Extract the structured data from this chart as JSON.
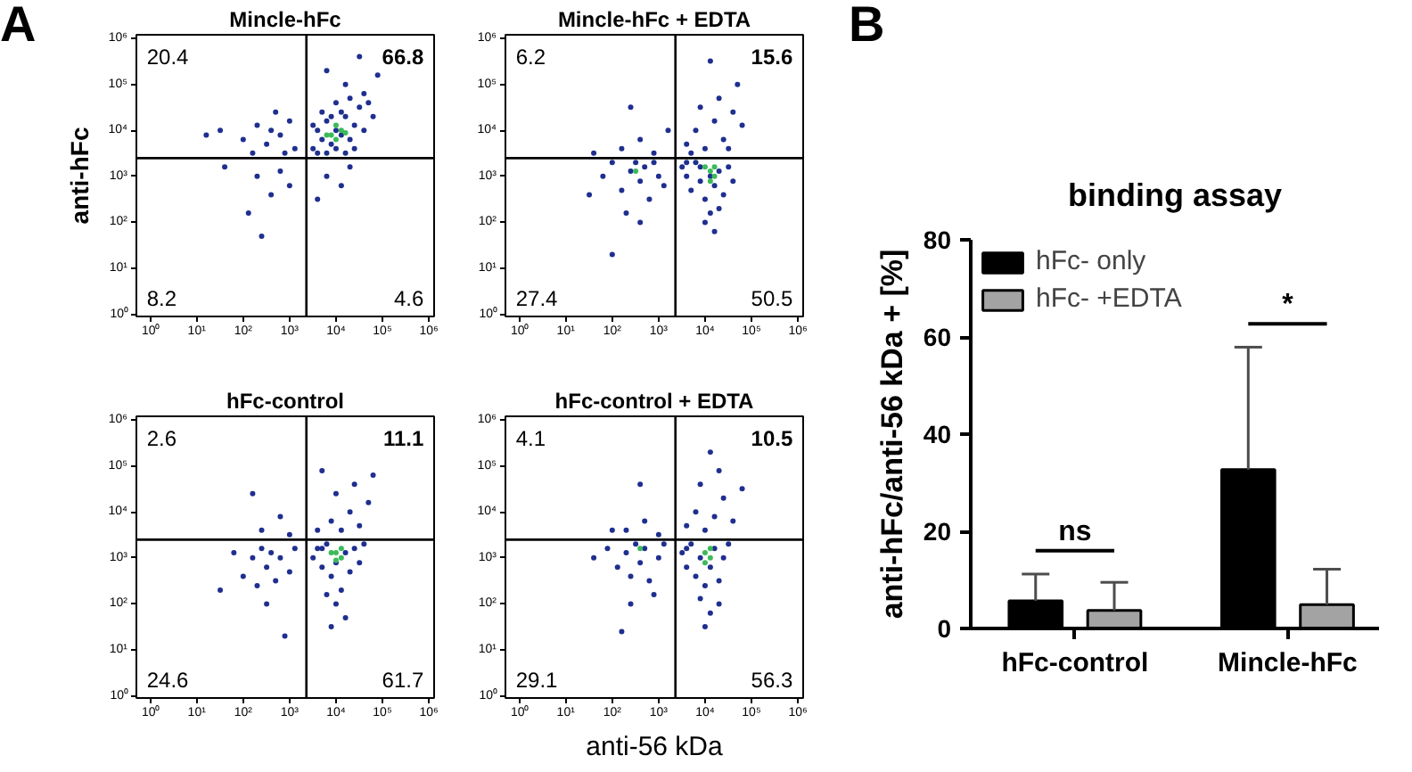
{
  "chart_data": [
    {
      "type": "scatter",
      "title": "Mincle-hFc",
      "ylabel": "anti-hFc",
      "log": "xy",
      "marker": "circle",
      "xlim": [
        0.5,
        1300000
      ],
      "ylim": [
        0.9,
        1200000
      ],
      "xticks": [
        {
          "value": 1,
          "label": "10⁰"
        },
        {
          "value": 10,
          "label": "10¹"
        },
        {
          "value": 100,
          "label": "10²"
        },
        {
          "value": 1000,
          "label": "10³"
        },
        {
          "value": 10000,
          "label": "10⁴"
        },
        {
          "value": 100000,
          "label": "10⁵"
        },
        {
          "value": 1000000,
          "label": "10⁶"
        }
      ],
      "yticks": [
        {
          "value": 1,
          "label": "10⁰"
        },
        {
          "value": 10,
          "label": "10¹"
        },
        {
          "value": 100,
          "label": "10²"
        },
        {
          "value": 1000,
          "label": "10³"
        },
        {
          "value": 10000,
          "label": "10⁴"
        },
        {
          "value": 100000,
          "label": "10⁵"
        },
        {
          "value": 1000000,
          "label": "10⁶"
        }
      ],
      "ref_lines": [
        {
          "axis": "x",
          "value": 2300,
          "color": "#000000"
        },
        {
          "axis": "y",
          "value": 2500,
          "color": "#000000"
        }
      ],
      "annotations": [
        "A",
        "20.4",
        "66.8",
        "8.2",
        "4.6"
      ],
      "series": [
        {
          "color": "#1f2f8f",
          "x": [
            3200,
            4000,
            5000,
            6300,
            7900,
            10000,
            13000,
            16000,
            20000,
            25000,
            32000,
            40000,
            4000,
            6300,
            10000,
            16000,
            5000,
            10000,
            20000,
            50000,
            63000,
            7900,
            13000,
            3200,
            25000,
            40000,
            79000,
            16000,
            6300,
            32000,
            32,
            100,
            200,
            320,
            400,
            630,
            1000,
            1300,
            500,
            16,
            160,
            790,
            200,
            400,
            630,
            130,
            1000,
            40,
            250,
            6300,
            13000,
            4000,
            20000
          ],
          "values": [
            4000,
            10000,
            6300,
            16000,
            5000,
            10000,
            7900,
            20000,
            6300,
            13000,
            32000,
            10000,
            3200,
            3200,
            4000,
            3200,
            25000,
            40000,
            50000,
            40000,
            20000,
            20000,
            25000,
            13000,
            4000,
            63000,
            160000,
            100000,
            200000,
            400000,
            10000,
            6300,
            13000,
            5000,
            10000,
            7900,
            16000,
            4000,
            25000,
            7900,
            3200,
            3200,
            1000,
            400,
            1300,
            160,
            630,
            1600,
            50,
            1000,
            630,
            320,
            1600
          ]
        },
        {
          "color": "#3cba5a",
          "x": [
            7900,
            10000,
            13000,
            10000,
            6300,
            16000
          ],
          "values": [
            7900,
            6300,
            10000,
            13000,
            7900,
            8900
          ]
        }
      ]
    },
    {
      "type": "scatter",
      "title": "Mincle-hFc + EDTA",
      "log": "xy",
      "marker": "circle",
      "xlim": [
        0.5,
        1300000
      ],
      "ylim": [
        0.9,
        1200000
      ],
      "xticks": [
        {
          "value": 1,
          "label": "10⁰"
        },
        {
          "value": 10,
          "label": "10¹"
        },
        {
          "value": 100,
          "label": "10²"
        },
        {
          "value": 1000,
          "label": "10³"
        },
        {
          "value": 10000,
          "label": "10⁴"
        },
        {
          "value": 100000,
          "label": "10⁵"
        },
        {
          "value": 1000000,
          "label": "10⁶"
        }
      ],
      "yticks": [
        {
          "value": 1,
          "label": "10⁰"
        },
        {
          "value": 10,
          "label": "10¹"
        },
        {
          "value": 100,
          "label": "10²"
        },
        {
          "value": 1000,
          "label": "10³"
        },
        {
          "value": 10000,
          "label": "10⁴"
        },
        {
          "value": 100000,
          "label": "10⁵"
        },
        {
          "value": 1000000,
          "label": "10⁶"
        }
      ],
      "ref_lines": [
        {
          "axis": "x",
          "value": 2300,
          "color": "#000000"
        },
        {
          "axis": "y",
          "value": 2500,
          "color": "#000000"
        }
      ],
      "annotations": [
        "6.2",
        "15.6",
        "27.4",
        "50.5"
      ],
      "series": [
        {
          "color": "#1f2f8f",
          "x": [
            3200,
            4000,
            5000,
            6300,
            7900,
            10000,
            13000,
            16000,
            20000,
            25000,
            32000,
            10000,
            16000,
            7900,
            13000,
            4000,
            40000,
            20000,
            4000,
            6300,
            10000,
            16000,
            25000,
            40000,
            63000,
            7900,
            20000,
            50000,
            13000,
            5000,
            32000,
            63,
            100,
            160,
            250,
            320,
            400,
            500,
            630,
            1000,
            1300,
            200,
            790,
            32,
            400,
            100,
            160,
            400,
            790,
            1600,
            40,
            250
          ],
          "values": [
            1600,
            1000,
            500,
            2000,
            790,
            320,
            160,
            630,
            1300,
            400,
            1600,
            100,
            63,
            1600,
            1000,
            2000,
            790,
            200,
            5000,
            10000,
            4000,
            16000,
            6300,
            25000,
            13000,
            32000,
            50000,
            100000,
            320000,
            3200,
            4000,
            1000,
            2000,
            500,
            1300,
            2000,
            790,
            1600,
            320,
            1000,
            630,
            160,
            2000,
            400,
            100,
            20,
            4000,
            6300,
            3200,
            10000,
            3200,
            32000
          ]
        },
        {
          "color": "#3cba5a",
          "x": [
            13000,
            16000,
            13000,
            16000,
            10000,
            320
          ],
          "values": [
            1300,
            1600,
            790,
            1000,
            1600,
            1300
          ]
        }
      ]
    },
    {
      "type": "scatter",
      "title": "hFc-control",
      "log": "xy",
      "marker": "circle",
      "xlim": [
        0.5,
        1300000
      ],
      "ylim": [
        0.9,
        1200000
      ],
      "xticks": [
        {
          "value": 1,
          "label": "10⁰"
        },
        {
          "value": 10,
          "label": "10¹"
        },
        {
          "value": 100,
          "label": "10²"
        },
        {
          "value": 1000,
          "label": "10³"
        },
        {
          "value": 10000,
          "label": "10⁴"
        },
        {
          "value": 100000,
          "label": "10⁵"
        },
        {
          "value": 1000000,
          "label": "10⁶"
        }
      ],
      "yticks": [
        {
          "value": 1,
          "label": "10⁰"
        },
        {
          "value": 10,
          "label": "10¹"
        },
        {
          "value": 100,
          "label": "10²"
        },
        {
          "value": 1000,
          "label": "10³"
        },
        {
          "value": 10000,
          "label": "10⁴"
        },
        {
          "value": 100000,
          "label": "10⁵"
        },
        {
          "value": 1000000,
          "label": "10⁶"
        }
      ],
      "ref_lines": [
        {
          "axis": "x",
          "value": 2300,
          "color": "#000000"
        },
        {
          "axis": "y",
          "value": 2500,
          "color": "#000000"
        }
      ],
      "annotations": [
        "2.6",
        "11.1",
        "24.6",
        "61.7"
      ],
      "series": [
        {
          "color": "#1f2f8f",
          "x": [
            3200,
            4000,
            5000,
            6300,
            7900,
            10000,
            13000,
            16000,
            20000,
            25000,
            32000,
            6300,
            10000,
            16000,
            5000,
            40000,
            7900,
            4000,
            7900,
            13000,
            20000,
            32000,
            50000,
            10000,
            25000,
            5000,
            63000,
            63,
            100,
            160,
            200,
            250,
            320,
            400,
            500,
            630,
            1000,
            1300,
            320,
            32,
            790,
            250,
            630,
            1000,
            160
          ],
          "values": [
            1000,
            1600,
            630,
            2000,
            400,
            790,
            200,
            1300,
            500,
            1600,
            790,
            160,
            100,
            50,
            1600,
            2000,
            32,
            4000,
            6300,
            4000,
            10000,
            5000,
            16000,
            25000,
            40000,
            79000,
            63000,
            1300,
            400,
            1000,
            250,
            1600,
            630,
            1300,
            320,
            1000,
            500,
            1600,
            100,
            200,
            20,
            4000,
            7900,
            3200,
            25000
          ]
        },
        {
          "color": "#3cba5a",
          "x": [
            10000,
            13000,
            7900,
            13000,
            10000
          ],
          "values": [
            1300,
            1000,
            1300,
            1600,
            890
          ]
        }
      ]
    },
    {
      "type": "scatter",
      "title": "hFc-control + EDTA",
      "xlabel": "anti-56 kDa",
      "log": "xy",
      "marker": "circle",
      "xlim": [
        0.5,
        1300000
      ],
      "ylim": [
        0.9,
        1200000
      ],
      "xticks": [
        {
          "value": 1,
          "label": "10⁰"
        },
        {
          "value": 10,
          "label": "10¹"
        },
        {
          "value": 100,
          "label": "10²"
        },
        {
          "value": 1000,
          "label": "10³"
        },
        {
          "value": 10000,
          "label": "10⁴"
        },
        {
          "value": 100000,
          "label": "10⁵"
        },
        {
          "value": 1000000,
          "label": "10⁶"
        }
      ],
      "yticks": [
        {
          "value": 1,
          "label": "10⁰"
        },
        {
          "value": 10,
          "label": "10¹"
        },
        {
          "value": 100,
          "label": "10²"
        },
        {
          "value": 1000,
          "label": "10³"
        },
        {
          "value": 10000,
          "label": "10⁴"
        },
        {
          "value": 100000,
          "label": "10⁵"
        },
        {
          "value": 1000000,
          "label": "10⁶"
        }
      ],
      "ref_lines": [
        {
          "axis": "x",
          "value": 2300,
          "color": "#000000"
        },
        {
          "axis": "y",
          "value": 2500,
          "color": "#000000"
        }
      ],
      "annotations": [
        "4.1",
        "10.5",
        "29.1",
        "56.3"
      ],
      "series": [
        {
          "color": "#1f2f8f",
          "x": [
            3200,
            4000,
            5000,
            6300,
            7900,
            10000,
            13000,
            16000,
            20000,
            25000,
            32000,
            7900,
            13000,
            10000,
            4000,
            20000,
            4000,
            6300,
            10000,
            16000,
            25000,
            40000,
            7900,
            20000,
            63000,
            13000,
            40,
            79,
            130,
            200,
            250,
            320,
            400,
            500,
            630,
            1000,
            1300,
            250,
            790,
            160,
            200,
            500,
            1000,
            100,
            400
          ],
          "values": [
            1300,
            630,
            2000,
            400,
            1000,
            250,
            630,
            1600,
            320,
            1000,
            2000,
            130,
            63,
            32,
            1600,
            100,
            5000,
            10000,
            4000,
            7900,
            20000,
            6300,
            40000,
            79000,
            32000,
            200000,
            1000,
            1600,
            630,
            1300,
            400,
            2000,
            790,
            1600,
            320,
            1000,
            2000,
            100,
            160,
            25,
            4000,
            6300,
            3200,
            4000,
            40000
          ]
        },
        {
          "color": "#3cba5a",
          "x": [
            10000,
            13000,
            10000,
            13000,
            400
          ],
          "values": [
            1300,
            1000,
            790,
            1600,
            1600
          ]
        }
      ]
    },
    {
      "type": "bar",
      "title": "binding assay",
      "ylabel": "anti-hFc/anti-56 kDa + [%]",
      "categories": [
        "hFc-control",
        "Mincle-hFc"
      ],
      "ylim": [
        0,
        80
      ],
      "yticks": [
        0,
        20,
        40,
        60,
        80
      ],
      "legend": "top left",
      "annotations": [
        "B",
        "ns",
        "*"
      ],
      "series": [
        {
          "name": "hFc- only",
          "color": "#000000",
          "values": [
            5.7,
            32.7
          ],
          "errors": [
            [
              5.7,
              11.2
            ],
            [
              32.7,
              57.9
            ]
          ]
        },
        {
          "name": "hFc- +EDTA",
          "color": "#a3a3a3",
          "values": [
            3.7,
            4.9
          ],
          "errors": [
            [
              3.7,
              9.5
            ],
            [
              4.9,
              12.2
            ]
          ]
        }
      ]
    }
  ]
}
